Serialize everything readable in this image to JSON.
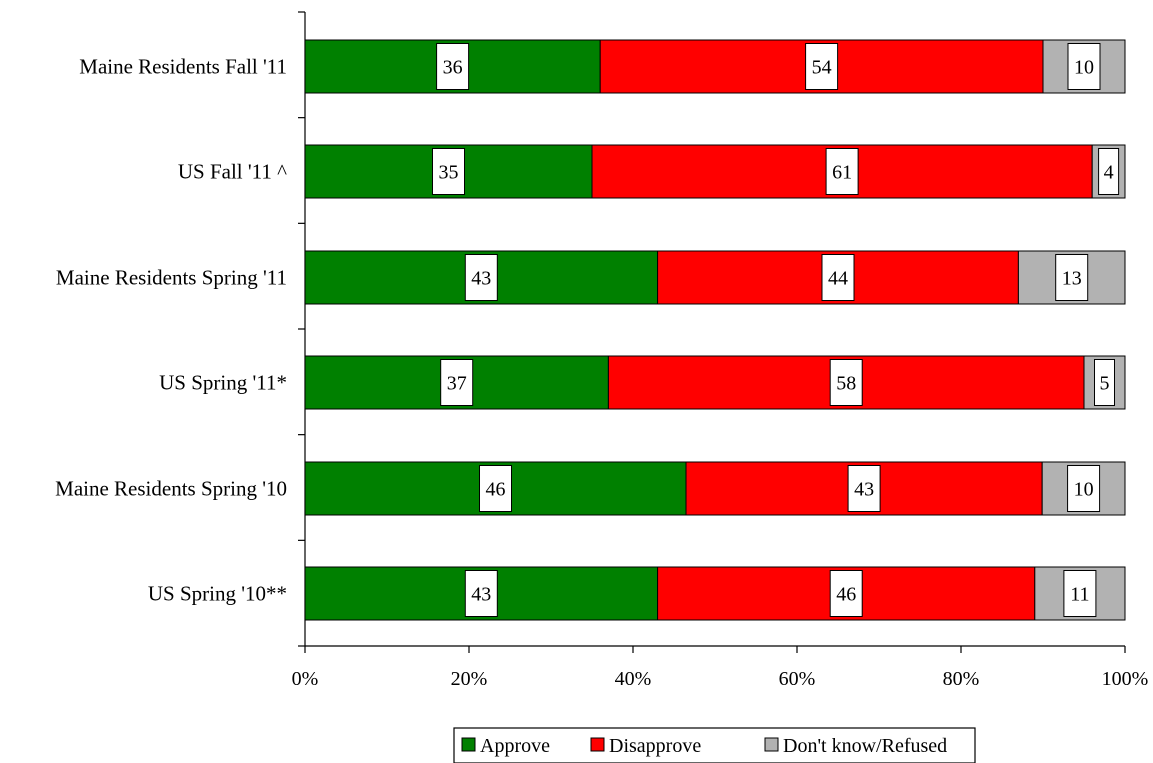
{
  "chart_data": {
    "type": "bar",
    "orientation": "horizontal",
    "stacked": true,
    "percent_stacked": true,
    "categories": [
      "Maine Residents Fall '11",
      "US Fall '11 ^",
      "Maine Residents Spring '11",
      "US Spring '11*",
      "Maine Residents Spring '10",
      "US Spring '10**"
    ],
    "series": [
      {
        "name": "Approve",
        "color": "#008000",
        "values": [
          36,
          35,
          43,
          37,
          46,
          43
        ]
      },
      {
        "name": "Disapprove",
        "color": "#ff0000",
        "values": [
          54,
          61,
          44,
          58,
          43,
          46
        ]
      },
      {
        "name": "Don't know/Refused",
        "color": "#b2b2b2",
        "values": [
          10,
          4,
          13,
          5,
          10,
          11
        ]
      }
    ],
    "x_ticks": [
      "0%",
      "20%",
      "40%",
      "60%",
      "80%",
      "100%"
    ],
    "xlim": [
      0,
      100
    ],
    "legend_position": "bottom",
    "grid": false
  }
}
